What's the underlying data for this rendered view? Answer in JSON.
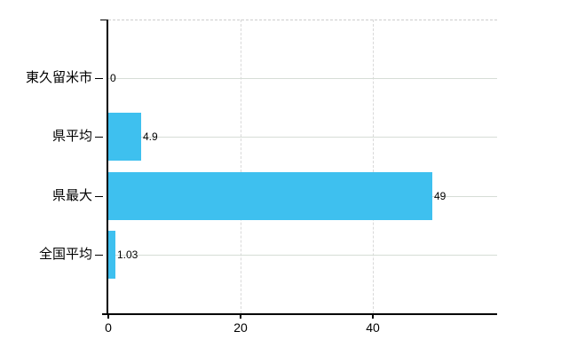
{
  "chart_data": {
    "type": "bar",
    "orientation": "horizontal",
    "title": "",
    "xlabel": "",
    "ylabel": "",
    "categories": [
      "東久留米市",
      "県平均",
      "県最大",
      "全国平均"
    ],
    "values": [
      0,
      4.9,
      49,
      1.03
    ],
    "value_labels": [
      "0",
      "4.9",
      "49",
      "1.03"
    ],
    "x_ticks": [
      0,
      20,
      40
    ],
    "x_tick_labels": [
      "0",
      "20",
      "40"
    ],
    "xlim": [
      0,
      58.8
    ],
    "grid": true,
    "legend_position": "none",
    "bar_color": "#3ec0ef",
    "axis_color": "#000000",
    "h_grid_color": "#d6ddd6",
    "v_grid_color": "#d9d9d9",
    "top_border_color": "#cccccc",
    "label_color": "#000000",
    "background_color": "#ffffff"
  }
}
